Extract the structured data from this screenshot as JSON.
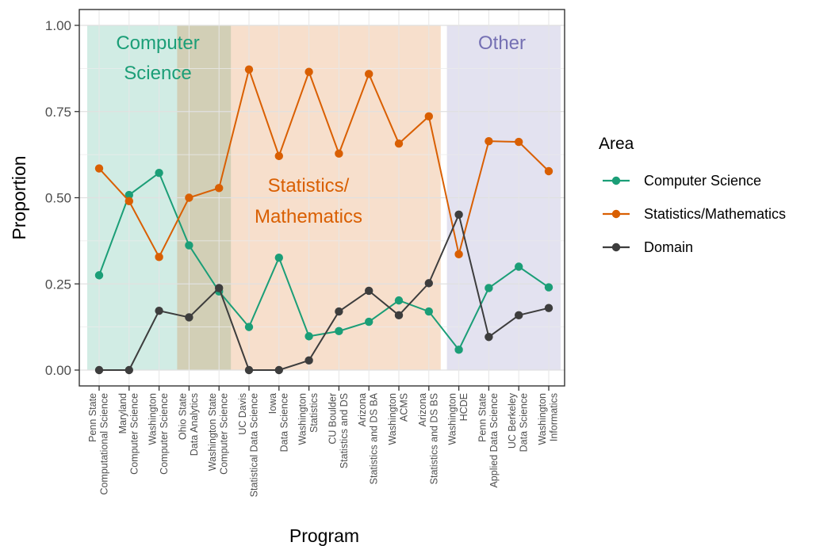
{
  "chart_data": {
    "type": "line",
    "xlabel": "Program",
    "ylabel": "Proportion",
    "ylim": [
      0,
      1
    ],
    "yticks": [
      0,
      0.25,
      0.5,
      0.75,
      1
    ],
    "ytick_labels": [
      "0.00",
      "0.25",
      "0.50",
      "0.75",
      "1.00"
    ],
    "grid": true,
    "legend_position": "right",
    "categories": [
      [
        "Penn State",
        "Computational Science"
      ],
      [
        "Maryland",
        "Computer Science"
      ],
      [
        "Washington",
        "Computer Science"
      ],
      [
        "Ohio State",
        "Data Analytics"
      ],
      [
        "Washington State",
        "Computer Science"
      ],
      [
        "UC Davis",
        "Statistical Data Science"
      ],
      [
        "Iowa",
        "Data Science"
      ],
      [
        "Washington",
        "Statistics"
      ],
      [
        "CU Boulder",
        "Statistics and DS"
      ],
      [
        "Arizona",
        "Statistics and DS BA"
      ],
      [
        "Washington",
        "ACMS"
      ],
      [
        "Arizona",
        "Statistics and DS BS"
      ],
      [
        "Washington",
        "HCDE"
      ],
      [
        "Penn State",
        "Applied Data Science"
      ],
      [
        "UC Berkeley",
        "Data Science"
      ],
      [
        "Washington",
        "Informatics"
      ]
    ],
    "legend": {
      "title": "Area",
      "entries": [
        "Computer Science",
        "Statistics/Mathematics",
        "Domain"
      ]
    },
    "series": [
      {
        "name": "Computer Science",
        "color": "#1b9e77",
        "values": [
          0.275,
          0.508,
          0.572,
          0.362,
          0.228,
          0.125,
          0.326,
          0.098,
          0.113,
          0.14,
          0.202,
          0.17,
          0.059,
          0.238,
          0.3,
          0.24
        ]
      },
      {
        "name": "Statistics/Mathematics",
        "color": "#d95f02",
        "values": [
          0.585,
          0.49,
          0.328,
          0.5,
          0.528,
          0.872,
          0.621,
          0.865,
          0.628,
          0.859,
          0.657,
          0.736,
          0.336,
          0.664,
          0.662,
          0.577
        ]
      },
      {
        "name": "Domain",
        "color": "#3d3d3d",
        "values": [
          0.0,
          0.0,
          0.172,
          0.153,
          0.238,
          0.0,
          0.0,
          0.028,
          0.17,
          0.23,
          0.159,
          0.252,
          0.451,
          0.096,
          0.159,
          0.18
        ]
      }
    ],
    "regions": [
      {
        "label": [
          "Computer",
          "Science"
        ],
        "color": "#1b9e77",
        "text_color": "#1b9e77",
        "x_start": 1,
        "x_end": 5
      },
      {
        "label": [
          "Statistics/",
          "Mathematics"
        ],
        "color": "#d95f02",
        "text_color": "#d95f02",
        "x_start": 4,
        "x_end": 12
      },
      {
        "label": [
          "Other"
        ],
        "color": "#7570b3",
        "text_color": "#7570b3",
        "x_start": 13,
        "x_end": 16
      }
    ]
  }
}
